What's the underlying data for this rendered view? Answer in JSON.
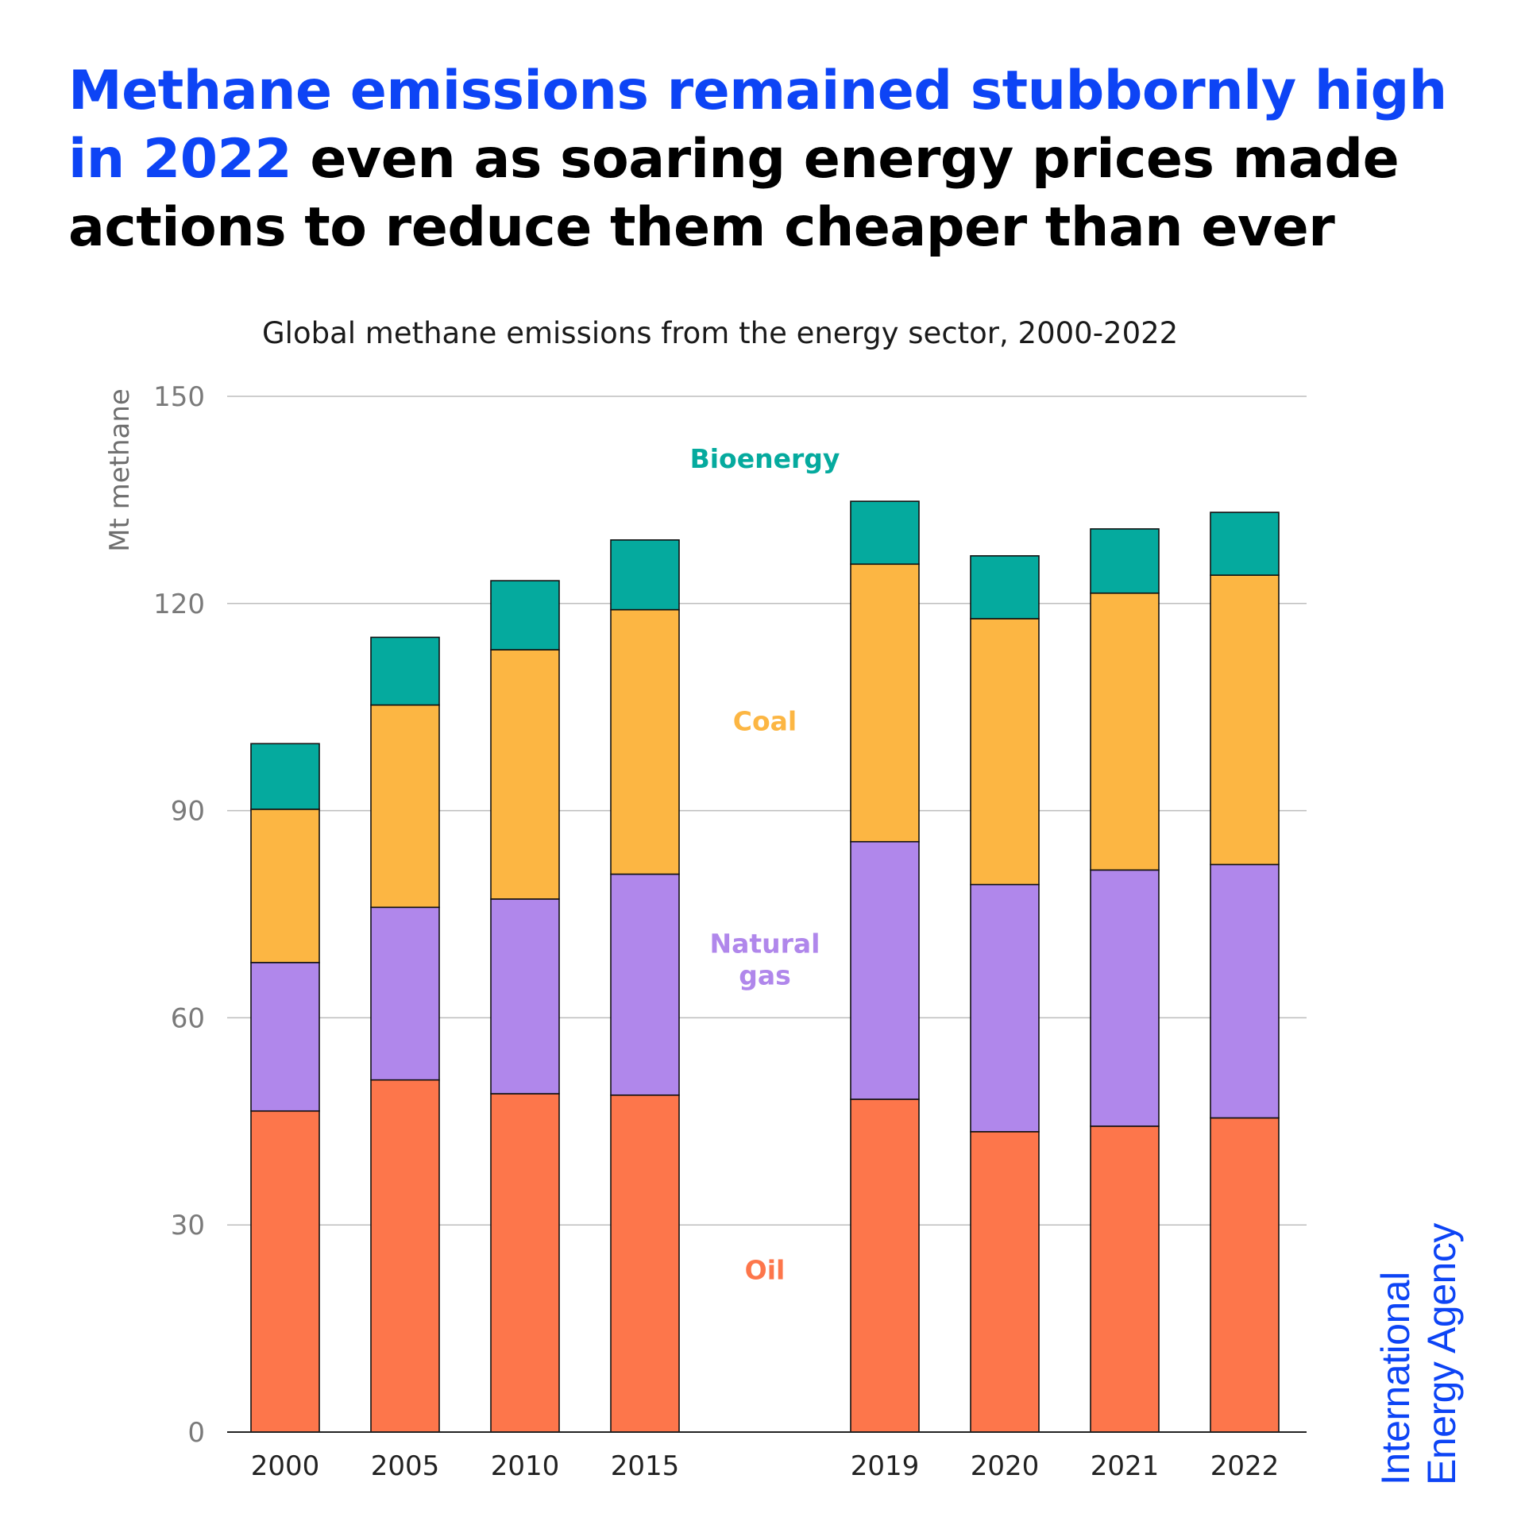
{
  "headline": {
    "highlight": "Methane emissions remained stubbornly high in 2022",
    "rest": " even as soaring energy prices made actions to reduce them cheaper than ever"
  },
  "logo": {
    "line1": "International",
    "line2": "Energy Agency"
  },
  "chart_data": {
    "type": "bar",
    "stacked": true,
    "title": "Global methane emissions from the energy sector, 2000-2022",
    "xlabel": "",
    "ylabel": "Mt methane",
    "ylim": [
      0,
      150
    ],
    "yticks": [
      0,
      30,
      60,
      90,
      120,
      150
    ],
    "grid": true,
    "categories": [
      "2000",
      "2005",
      "2010",
      "2015",
      "2019",
      "2020",
      "2021",
      "2022"
    ],
    "category_gap_after": "2015",
    "series": [
      {
        "name": "Oil",
        "color": "#fd764b",
        "values": [
          46.5,
          51,
          49,
          48.8,
          48.2,
          43.5,
          44.3,
          45.5
        ]
      },
      {
        "name": "Natural gas",
        "color": "#b087eb",
        "values": [
          21.5,
          25,
          28.2,
          32,
          37.3,
          35.8,
          37.1,
          36.7
        ]
      },
      {
        "name": "Coal",
        "color": "#fcb643",
        "values": [
          22.2,
          29.3,
          36.1,
          38.3,
          40.2,
          38.5,
          40.1,
          41.9
        ]
      },
      {
        "name": "Bioenergy",
        "color": "#05aa9e",
        "values": [
          9.5,
          9.8,
          10,
          10.1,
          9.1,
          9.1,
          9.3,
          9.1
        ]
      }
    ],
    "legend_labels": [
      {
        "series": "Bioenergy",
        "lines": [
          "Bioenergy"
        ],
        "value": 141,
        "color": "#05aa9e"
      },
      {
        "series": "Coal",
        "lines": [
          "Coal"
        ],
        "value": 103,
        "color": "#fcb643"
      },
      {
        "series": "Natural gas",
        "lines": [
          "Natural",
          "gas"
        ],
        "value": 68.5,
        "color": "#b087eb"
      },
      {
        "series": "Oil",
        "lines": [
          "Oil"
        ],
        "value": 23.5,
        "color": "#fd764b"
      }
    ]
  }
}
